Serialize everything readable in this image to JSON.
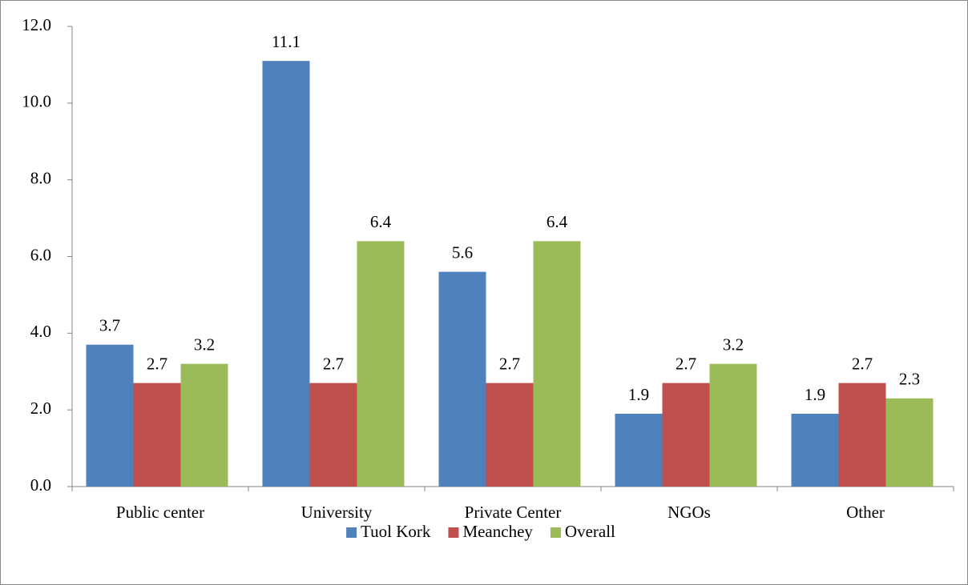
{
  "chart_data": {
    "type": "bar",
    "categories": [
      "Public center",
      "University",
      "Private Center",
      "NGOs",
      "Other"
    ],
    "series": [
      {
        "name": "Tuol Kork",
        "color": "#4f81bd",
        "values": [
          3.7,
          11.1,
          5.6,
          1.9,
          1.9
        ]
      },
      {
        "name": "Meanchey",
        "color": "#c0504d",
        "values": [
          2.7,
          2.7,
          2.7,
          2.7,
          2.7
        ]
      },
      {
        "name": "Overall",
        "color": "#9bbb59",
        "values": [
          3.2,
          6.4,
          6.4,
          3.2,
          2.3
        ]
      }
    ],
    "ylim": [
      0,
      12
    ],
    "yticks": [
      {
        "value": 0,
        "label": "0.0"
      },
      {
        "value": 2,
        "label": "2.0"
      },
      {
        "value": 4,
        "label": "4.0"
      },
      {
        "value": 6,
        "label": "6.0"
      },
      {
        "value": 8,
        "label": "8.0"
      },
      {
        "value": 10,
        "label": "10.0"
      },
      {
        "value": 12,
        "label": "12.0"
      }
    ],
    "grid": false,
    "legend": "bottom"
  }
}
